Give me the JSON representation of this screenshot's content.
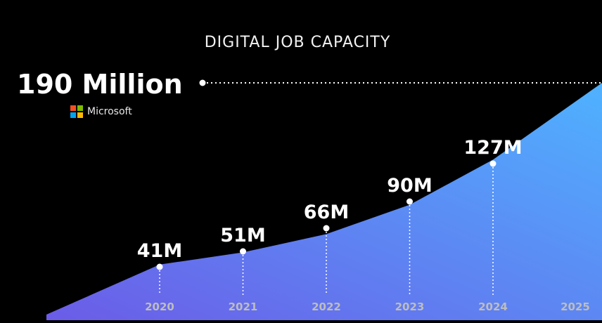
{
  "title": "DIGITAL JOB CAPACITY",
  "headline": "190 Million",
  "brand": {
    "name": "Microsoft",
    "logo_colors": [
      "#f25022",
      "#7fba00",
      "#00a4ef",
      "#ffb900"
    ]
  },
  "chart_data": {
    "type": "area",
    "x": [
      "2020",
      "2021",
      "2022",
      "2023",
      "2024",
      "2025"
    ],
    "series": [
      {
        "values": [
          41,
          51,
          66,
          90,
          127,
          190
        ],
        "labels": [
          "41M",
          "51M",
          "66M",
          "90M",
          "127M",
          ""
        ]
      }
    ],
    "grid": false,
    "colors": {
      "gradient_start": "#6b5ce7",
      "gradient_end": "#4fb2ff",
      "text": "#ffffff",
      "axis_text": "#bdbdbd"
    }
  }
}
